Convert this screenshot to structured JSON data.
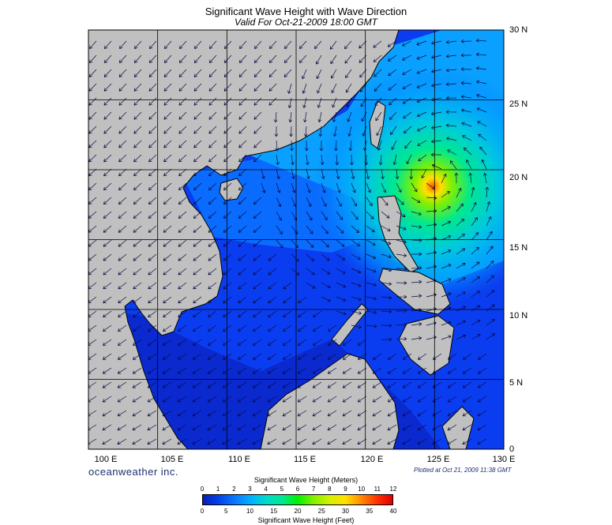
{
  "title": "Significant Wave Height with Wave Direction",
  "subtitle": "Valid For Oct-21-2009 18:00 GMT",
  "latitude_labels": [
    "30 N",
    "25 N",
    "20 N",
    "15 N",
    "10 N",
    "5 N",
    "0"
  ],
  "latitudes": [
    30,
    25,
    20,
    15,
    10,
    5,
    0
  ],
  "longitude_labels": [
    "100 E",
    "105 E",
    "110 E",
    "115 E",
    "120 E",
    "125 E",
    "130 E"
  ],
  "longitudes": [
    100,
    105,
    110,
    115,
    120,
    125,
    130
  ],
  "map_extent": {
    "lon_min": 100,
    "lon_max": 130,
    "lat_min": 0,
    "lat_max": 30
  },
  "storm_center": {
    "lon": 125,
    "lat": 19.5,
    "peak_wave_height_m": 10
  },
  "credit": "oceanweather inc.",
  "plotted_at": "Plotted at Oct 21, 2009 11:38 GMT",
  "colorbar": {
    "title_meters": "Significant Wave Height (Meters)",
    "title_feet": "Significant Wave Height (Feet)",
    "meters_ticks": [
      "0",
      "1",
      "2",
      "3",
      "4",
      "5",
      "6",
      "7",
      "8",
      "9",
      "10",
      "11",
      "12"
    ],
    "feet_ticks": [
      "0",
      "5",
      "10",
      "15",
      "20",
      "25",
      "30",
      "35",
      "40"
    ],
    "colors": [
      "#0a1eb4",
      "#0040e8",
      "#0b78ff",
      "#00b0ff",
      "#00d8d0",
      "#00e890",
      "#00f000",
      "#80f000",
      "#d8f000",
      "#ffe000",
      "#ff9000",
      "#ff3000",
      "#e00000"
    ]
  },
  "colors": {
    "land": "#c0c0c0",
    "coast": "#000000",
    "grid": "#000000",
    "text_blue": "#1c2f6e"
  }
}
